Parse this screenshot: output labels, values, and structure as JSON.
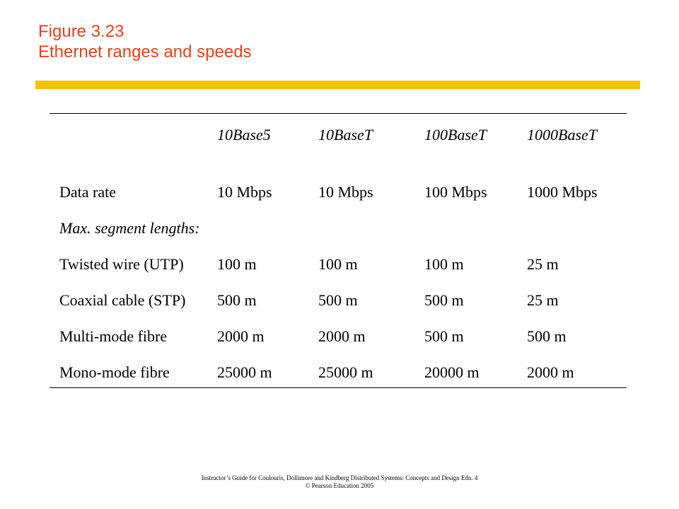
{
  "title": {
    "line1": "Figure 3.23",
    "line2": "Ethernet ranges and speeds"
  },
  "colors": {
    "title": "#e8401c",
    "accent_bar": "#f2c200"
  },
  "table": {
    "columns": [
      "10Base5",
      "10BaseT",
      "100BaseT",
      "1000BaseT"
    ],
    "data_rate": {
      "label": "Data rate",
      "values": [
        "10 Mbps",
        "10 Mbps",
        "100 Mbps",
        "1000 Mbps"
      ]
    },
    "section_label": "Max. segment lengths:",
    "rows": [
      {
        "label": "Twisted wire (UTP)",
        "values": [
          "100 m",
          "100 m",
          "100 m",
          "25 m"
        ]
      },
      {
        "label": "Coaxial cable (STP)",
        "values": [
          "500 m",
          "500 m",
          "500 m",
          "25 m"
        ]
      },
      {
        "label": "Multi-mode fibre",
        "values": [
          "2000 m",
          "2000 m",
          "500 m",
          "500 m"
        ]
      },
      {
        "label": "Mono-mode fibre",
        "values": [
          "25000 m",
          "25000 m",
          "20000 m",
          "2000 m"
        ]
      }
    ]
  },
  "footer": {
    "line1": "Instructor’s Guide for  Coulouris, Dollimore and Kindberg  Distributed Systems: Concepts and Design   Edn. 4",
    "line2": "©  Pearson Education 2005"
  }
}
